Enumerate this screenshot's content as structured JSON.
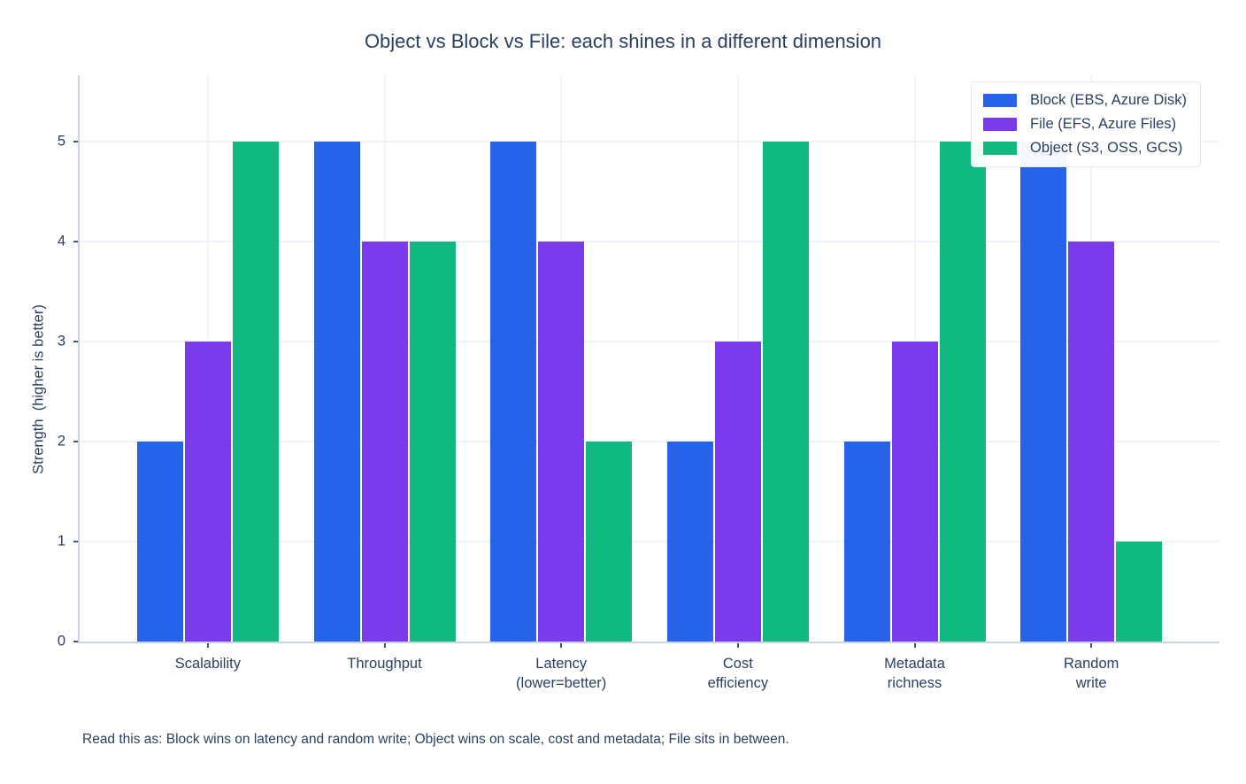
{
  "page_title": "Object vs Block vs File: each shines in a different dimension",
  "chart_data": {
    "type": "bar",
    "title": "Object vs Block vs File: each shines in a different dimension",
    "xlabel": "",
    "ylabel": "Strength  (higher is better)",
    "categories": [
      "Scalability",
      "Throughput",
      "Latency\n(lower=better)",
      "Cost\nefficiency",
      "Metadata\nrichness",
      "Random\nwrite"
    ],
    "series": [
      {
        "name": "Block (EBS, Azure Disk)",
        "color": "#2563eb",
        "values": [
          2,
          5,
          5,
          2,
          2,
          5
        ]
      },
      {
        "name": "File (EFS, Azure Files)",
        "color": "#7c3aed",
        "values": [
          3,
          4,
          4,
          3,
          3,
          4
        ]
      },
      {
        "name": "Object (S3, OSS, GCS)",
        "color": "#10b981",
        "values": [
          5,
          4,
          2,
          5,
          5,
          1
        ]
      }
    ],
    "yticks": [
      0,
      1,
      2,
      3,
      4,
      5
    ],
    "ylim": [
      0,
      5.66
    ],
    "grid": true,
    "legend_position": "top-right",
    "annotation": "Read this as: Block wins on latency and random write; Object wins on scale, cost and metadata; File sits in between."
  },
  "colors": {
    "background": "#ffffff",
    "text": "#2a3f5f",
    "axis_line": "#c8d4e3",
    "gridline": "#eef2f9",
    "block_blue": "#2563eb",
    "file_purple": "#7c3aed",
    "object_green": "#10b981"
  }
}
